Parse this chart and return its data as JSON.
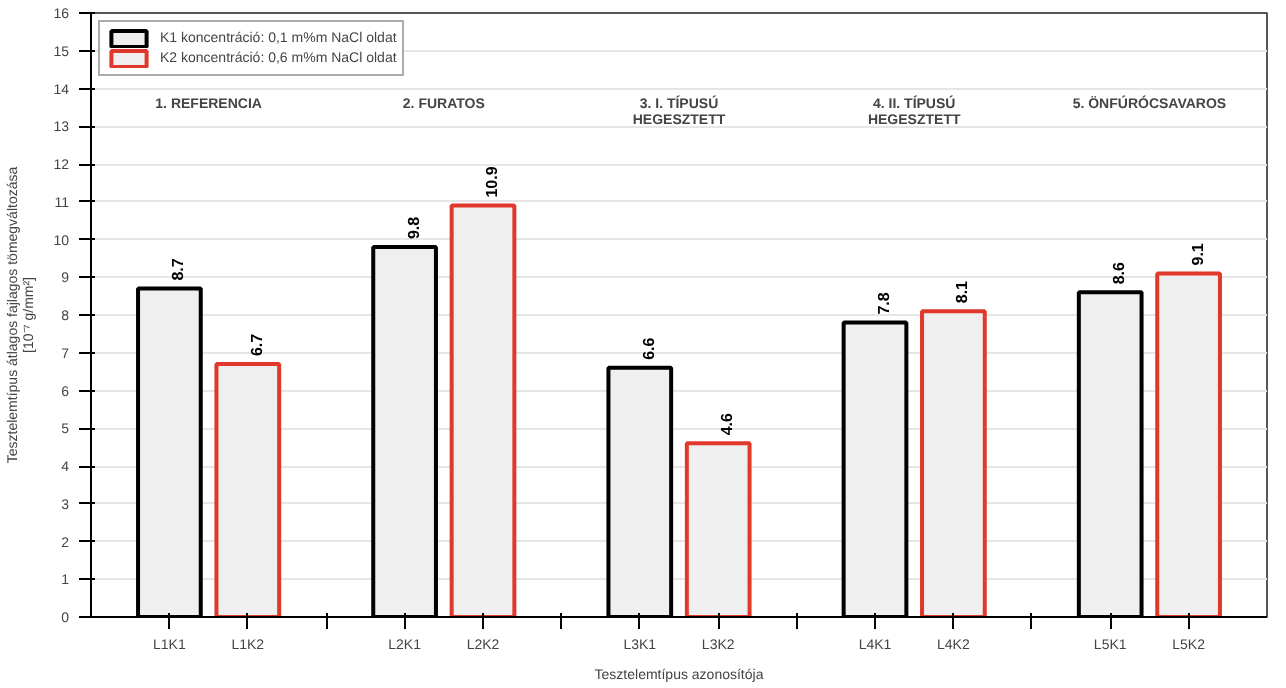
{
  "chart_data": {
    "type": "bar",
    "xlabel": "Tesztelemtípus azonosítója",
    "ylabel": "Tesztelemtípus átlagos fajlagos tömegváltozása\n[10⁻⁷ g/mm²]",
    "categories": [
      "L1K1",
      "L1K2",
      null,
      "L2K1",
      "L2K2",
      null,
      "L3K1",
      "L3K2",
      null,
      "L4K1",
      "L4K2",
      null,
      "L5K1",
      "L5K2"
    ],
    "series": [
      {
        "name": "K1 koncentráció: 0,1 m%m NaCl oldat",
        "color": "#000000",
        "values": [
          8.7,
          null,
          null,
          9.8,
          null,
          null,
          6.6,
          null,
          null,
          7.8,
          null,
          null,
          8.6,
          null
        ]
      },
      {
        "name": "K2 koncentráció: 0,6 m%m NaCl oldat",
        "color": "#e0392b",
        "values": [
          null,
          6.7,
          null,
          null,
          10.9,
          null,
          null,
          4.6,
          null,
          null,
          8.1,
          null,
          null,
          9.1
        ]
      }
    ],
    "ylim": [
      0,
      16
    ],
    "yticks": [
      0,
      1,
      2,
      3,
      4,
      5,
      6,
      7,
      8,
      9,
      10,
      11,
      12,
      13,
      14,
      15,
      16
    ],
    "grid": "y",
    "legend": "top left",
    "data_labels": true,
    "annotations": [
      "1. REFERENCIA",
      "2. FURATOS",
      "3. I. TÍPUSÚ\nHEGESZTETT",
      "4. II. TÍPUSÚ\nHEGESZTETT",
      "5. ÖNFÚRÓCSAVAROS"
    ]
  }
}
